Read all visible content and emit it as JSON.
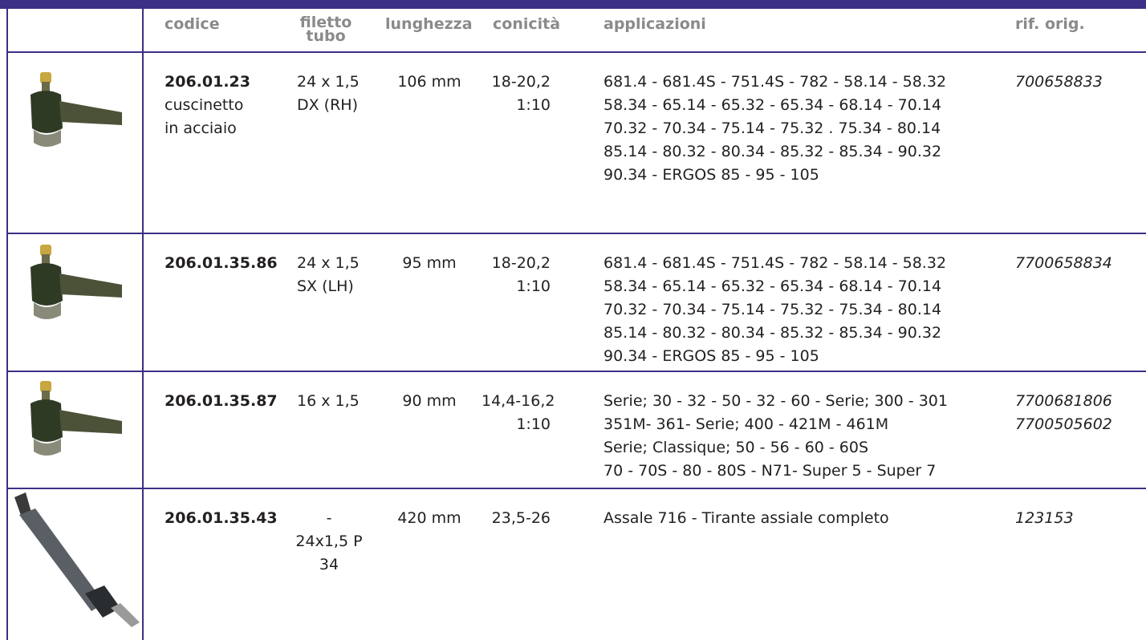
{
  "table": {
    "headers": [
      "codice",
      "filetto tubo",
      "lunghezza",
      "conicità",
      "applicazioni",
      "rif. orig."
    ],
    "rows": [
      {
        "codice": "206.01.23",
        "note": [
          "cuscinetto",
          "in acciaio"
        ],
        "filetto": [
          "24 x 1,5",
          "DX (RH)"
        ],
        "lunghezza": "106 mm",
        "conicita": [
          "18-20,2",
          "1:10"
        ],
        "applicazioni": [
          "681.4 - 681.4S - 751.4S - 782 - 58.14 - 58.32",
          "58.34 - 65.14 - 65.32 - 65.34 - 68.14 - 70.14",
          "70.32 - 70.34 - 75.14 - 75.32 . 75.34 - 80.14",
          "85.14 - 80.32 - 80.34 - 85.32 - 85.34 - 90.32",
          "90.34 - ERGOS 85 - 95 - 105"
        ],
        "rif": [
          "700658833"
        ]
      },
      {
        "codice": "206.01.35.86",
        "note": [],
        "filetto": [
          "24 x 1,5",
          "SX (LH)"
        ],
        "lunghezza": "95 mm",
        "conicita": [
          "18-20,2",
          "1:10"
        ],
        "applicazioni": [
          "681.4 - 681.4S - 751.4S - 782 - 58.14 - 58.32",
          "58.34 - 65.14 - 65.32 - 65.34 - 68.14 - 70.14",
          "70.32 - 70.34 - 75.14 - 75.32 - 75.34 - 80.14",
          "85.14 - 80.32 - 80.34 - 85.32 - 85.34 - 90.32",
          "90.34 - ERGOS 85 - 95 - 105"
        ],
        "rif": [
          "7700658834"
        ]
      },
      {
        "codice": "206.01.35.87",
        "note": [],
        "filetto": [
          "16 x 1,5"
        ],
        "lunghezza": "90 mm",
        "conicita": [
          "14,4-16,2",
          "1:10"
        ],
        "applicazioni": [
          "Serie; 30 - 32 - 50 - 32 - 60 - Serie; 300 - 301",
          "351M- 361- Serie; 400 - 421M - 461M",
          "Serie; Classique; 50 - 56 - 60 - 60S",
          "70 - 70S - 80 - 80S - N71- Super 5 - Super 7"
        ],
        "rif": [
          "7700681806",
          "7700505602"
        ]
      },
      {
        "codice": "206.01.35.43",
        "note": [],
        "filetto": [
          "-",
          "24x1,5 P",
          "34"
        ],
        "lunghezza": "420 mm",
        "conicita": [
          "23,5-26"
        ],
        "applicazioni": [
          "Assale 716 - Tirante assiale completo"
        ],
        "rif": [
          "123153"
        ]
      }
    ]
  }
}
